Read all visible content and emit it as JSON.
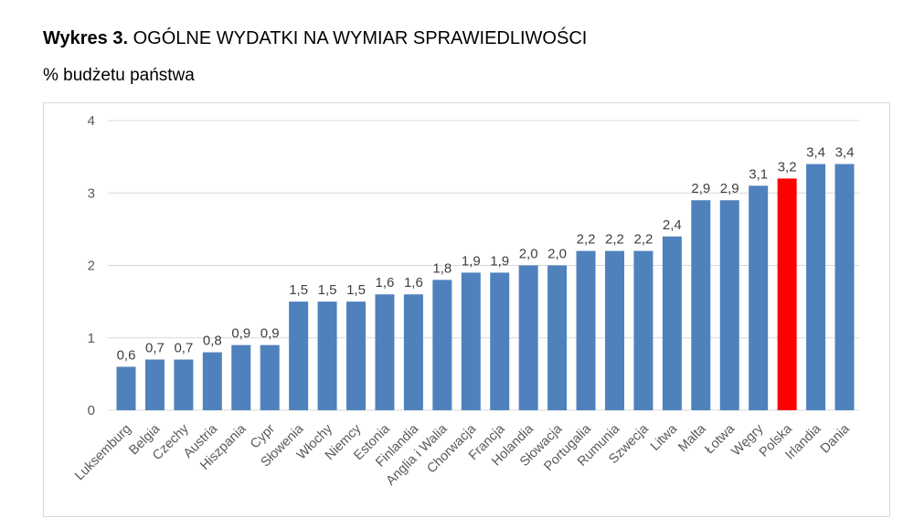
{
  "chart_data": {
    "type": "bar",
    "title_prefix": "Wykres 3.",
    "title": "OGÓLNE WYDATKI NA WYMIAR SPRAWIEDLIWOŚCI",
    "subtitle": "% budżetu państwa",
    "ylim": [
      0,
      4
    ],
    "yticks": [
      "0",
      "1",
      "2",
      "3",
      "4"
    ],
    "grid": true,
    "categories": [
      "Luksemburg",
      "Belgia",
      "Czechy",
      "Austria",
      "Hiszpania",
      "Cypr",
      "Słowenia",
      "Włochy",
      "Niemcy",
      "Estonia",
      "Finlandia",
      "Anglia i Walia",
      "Chorwacja",
      "Francja",
      "Holandia",
      "Słowacja",
      "Portugalia",
      "Rumunia",
      "Szwecja",
      "Litwa",
      "Malta",
      "Łotwa",
      "Węgry",
      "Polska",
      "Irlandia",
      "Dania"
    ],
    "values": [
      0.6,
      0.7,
      0.7,
      0.8,
      0.9,
      0.9,
      1.5,
      1.5,
      1.5,
      1.6,
      1.6,
      1.8,
      1.9,
      1.9,
      2.0,
      2.0,
      2.2,
      2.2,
      2.2,
      2.4,
      2.9,
      2.9,
      3.1,
      3.2,
      3.4,
      3.4
    ],
    "data_labels": [
      "0,6",
      "0,7",
      "0,7",
      "0,8",
      "0,9",
      "0,9",
      "1,5",
      "1,5",
      "1,5",
      "1,6",
      "1,6",
      "1,8",
      "1,9",
      "1,9",
      "2,0",
      "2,0",
      "2,2",
      "2,2",
      "2,2",
      "2,4",
      "2,9",
      "2,9",
      "3,1",
      "3,2",
      "3,4",
      "3,4"
    ],
    "highlight": "Polska",
    "colors": {
      "bar": "#4f81bd",
      "highlight": "#ff0000",
      "grid": "#d9d9d9"
    }
  }
}
